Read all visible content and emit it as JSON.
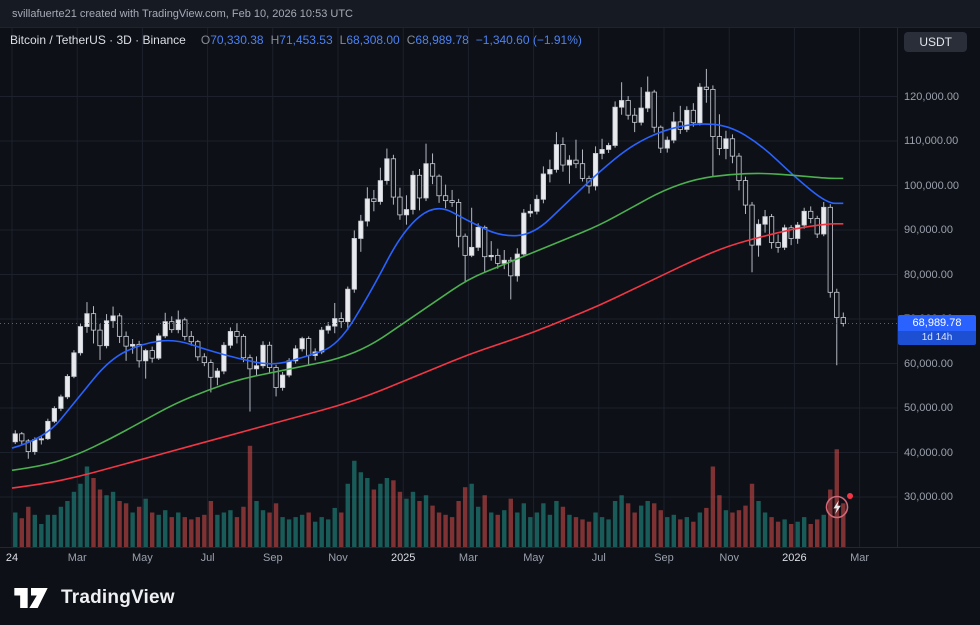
{
  "topbar": {
    "attribution": "svillafuerte21 created with TradingView.com, Feb 10, 2026 10:53 UTC"
  },
  "legend": {
    "symbol": "Bitcoin / TetherUS · 3D · Binance",
    "ohlc": [
      {
        "label": "O",
        "value": "70,330.38"
      },
      {
        "label": "H",
        "value": "71,453.53"
      },
      {
        "label": "L",
        "value": "68,308.00"
      },
      {
        "label": "C",
        "value": "68,989.78"
      }
    ],
    "change": "−1,340.60 (−1.91%)"
  },
  "currency_button": "USDT",
  "price_axis": {
    "labels": [
      {
        "text": "120,000.00",
        "value": 120
      },
      {
        "text": "110,000.00",
        "value": 110
      },
      {
        "text": "100,000.00",
        "value": 100
      },
      {
        "text": "90,000.00",
        "value": 90
      },
      {
        "text": "80,000.00",
        "value": 80
      },
      {
        "text": "70,000.00",
        "value": 70
      },
      {
        "text": "60,000.00",
        "value": 60
      },
      {
        "text": "50,000.00",
        "value": 50
      },
      {
        "text": "40,000.00",
        "value": 40
      },
      {
        "text": "30,000.00",
        "value": 30
      }
    ],
    "last_price": {
      "text": "68,989.78",
      "value": 68.98978,
      "countdown": "1d 14h"
    }
  },
  "time_axis": {
    "labels": [
      {
        "text": "24",
        "m": 0,
        "major": true
      },
      {
        "text": "Mar",
        "m": 2,
        "major": false
      },
      {
        "text": "May",
        "m": 4,
        "major": false
      },
      {
        "text": "Jul",
        "m": 6,
        "major": false
      },
      {
        "text": "Sep",
        "m": 8,
        "major": false
      },
      {
        "text": "Nov",
        "m": 10,
        "major": false
      },
      {
        "text": "2025",
        "m": 12,
        "major": true
      },
      {
        "text": "Mar",
        "m": 14,
        "major": false
      },
      {
        "text": "May",
        "m": 16,
        "major": false
      },
      {
        "text": "Jul",
        "m": 18,
        "major": false
      },
      {
        "text": "Sep",
        "m": 20,
        "major": false
      },
      {
        "text": "Nov",
        "m": 22,
        "major": false
      },
      {
        "text": "2026",
        "m": 24,
        "major": true
      },
      {
        "text": "Mar",
        "m": 26,
        "major": false
      }
    ]
  },
  "footer": {
    "brand": "TradingView"
  },
  "colors": {
    "background": "#0d1016",
    "grid": "#1c212c",
    "axis_border": "#222734",
    "axis_text": "#9aa0ac",
    "accent_blue": "#2962ff",
    "ma_fast": "#2962ff",
    "ma_mid": "#4caf50",
    "ma_slow": "#f23645",
    "candle_up": "#e9eaee",
    "candle_down": "#0d1016",
    "candle_border": "#c9cdd5",
    "candle_wick": "#b4b8c2",
    "vol_up": "#26a69a",
    "vol_down": "#ef5350",
    "badge_bg": "#2962ff",
    "dot_red": "#f23645"
  },
  "chart_data": {
    "type": "bar",
    "subtype": "candlestick-with-volume",
    "title": "Bitcoin / TetherUS",
    "exchange": "Binance",
    "interval": "3D",
    "unit": "USD thousands",
    "x_range": "Jan 2024 – Feb 10 2026",
    "ylim": [
      30,
      120
    ],
    "last_bar": {
      "open": 70330.38,
      "high": 71453.53,
      "low": 68308.0,
      "close": 68989.78,
      "change": -1340.6,
      "change_pct": -1.91
    },
    "candles": [
      [
        42.4,
        45.0,
        41.9,
        44.2,
        30
      ],
      [
        44.2,
        44.6,
        41.6,
        42.6,
        25
      ],
      [
        42.6,
        43.0,
        38.6,
        40.2,
        35
      ],
      [
        40.2,
        43.4,
        39.5,
        42.9,
        28
      ],
      [
        42.9,
        43.6,
        41.8,
        43.1,
        20
      ],
      [
        43.1,
        47.6,
        42.8,
        47.0,
        28
      ],
      [
        47.0,
        50.4,
        46.6,
        49.9,
        28
      ],
      [
        49.9,
        53.0,
        49.3,
        52.5,
        35
      ],
      [
        52.5,
        57.6,
        52.0,
        57.1,
        40
      ],
      [
        57.1,
        63.0,
        56.7,
        62.4,
        48
      ],
      [
        62.4,
        69.0,
        61.8,
        68.3,
        55
      ],
      [
        68.3,
        73.8,
        66.9,
        71.2,
        70
      ],
      [
        71.2,
        72.9,
        64.5,
        67.5,
        60
      ],
      [
        67.5,
        68.9,
        60.8,
        64.0,
        50
      ],
      [
        64.0,
        71.1,
        63.4,
        69.6,
        45
      ],
      [
        69.6,
        72.8,
        68.0,
        70.7,
        48
      ],
      [
        70.7,
        71.3,
        64.6,
        66.1,
        40
      ],
      [
        66.1,
        67.2,
        60.6,
        63.9,
        38
      ],
      [
        63.9,
        65.5,
        62.2,
        64.3,
        30
      ],
      [
        64.3,
        65.1,
        59.1,
        60.6,
        35
      ],
      [
        60.6,
        63.3,
        56.6,
        62.9,
        42
      ],
      [
        62.9,
        63.8,
        60.2,
        61.2,
        30
      ],
      [
        61.2,
        66.8,
        60.8,
        66.2,
        28
      ],
      [
        66.2,
        71.4,
        65.7,
        69.4,
        32
      ],
      [
        69.4,
        70.6,
        66.9,
        67.6,
        26
      ],
      [
        67.6,
        71.9,
        66.8,
        69.8,
        30
      ],
      [
        69.8,
        70.3,
        65.2,
        66.1,
        26
      ],
      [
        66.1,
        67.3,
        64.0,
        64.9,
        24
      ],
      [
        64.9,
        65.3,
        60.6,
        61.5,
        26
      ],
      [
        61.5,
        62.3,
        59.4,
        60.2,
        28
      ],
      [
        60.2,
        60.9,
        53.5,
        56.9,
        40
      ],
      [
        56.9,
        59.0,
        55.1,
        58.3,
        28
      ],
      [
        58.3,
        64.8,
        57.6,
        64.1,
        30
      ],
      [
        64.1,
        68.1,
        63.4,
        67.2,
        32
      ],
      [
        67.2,
        69.1,
        64.5,
        66.1,
        26
      ],
      [
        66.1,
        66.6,
        60.3,
        61.3,
        35
      ],
      [
        61.3,
        62.0,
        49.2,
        58.8,
        88
      ],
      [
        58.8,
        61.6,
        57.2,
        59.5,
        40
      ],
      [
        59.5,
        65.0,
        58.9,
        64.1,
        32
      ],
      [
        64.1,
        64.9,
        57.9,
        59.1,
        30
      ],
      [
        59.1,
        59.7,
        52.6,
        54.6,
        38
      ],
      [
        54.6,
        58.1,
        53.9,
        57.4,
        26
      ],
      [
        57.4,
        61.2,
        56.9,
        60.6,
        24
      ],
      [
        60.6,
        64.1,
        60.0,
        63.3,
        26
      ],
      [
        63.3,
        66.0,
        62.7,
        65.6,
        28
      ],
      [
        65.6,
        66.1,
        59.8,
        61.8,
        30
      ],
      [
        61.8,
        63.4,
        60.7,
        62.6,
        22
      ],
      [
        62.6,
        68.2,
        62.1,
        67.5,
        26
      ],
      [
        67.5,
        69.3,
        66.7,
        68.4,
        24
      ],
      [
        68.4,
        73.6,
        66.8,
        70.1,
        34
      ],
      [
        70.1,
        71.5,
        68.0,
        69.4,
        30
      ],
      [
        69.4,
        77.3,
        67.5,
        76.7,
        55
      ],
      [
        76.7,
        89.9,
        75.9,
        88.1,
        75
      ],
      [
        88.1,
        93.4,
        85.1,
        92.0,
        65
      ],
      [
        92.0,
        99.6,
        90.8,
        97.0,
        60
      ],
      [
        97.0,
        99.0,
        94.2,
        96.4,
        50
      ],
      [
        96.4,
        104.0,
        95.7,
        101.1,
        55
      ],
      [
        101.1,
        108.3,
        100.2,
        106.0,
        60
      ],
      [
        106.0,
        106.9,
        95.7,
        97.4,
        58
      ],
      [
        97.4,
        99.5,
        92.3,
        93.4,
        48
      ],
      [
        93.4,
        97.8,
        91.2,
        94.6,
        42
      ],
      [
        94.6,
        103.3,
        93.5,
        102.3,
        48
      ],
      [
        102.3,
        103.7,
        94.4,
        97.2,
        40
      ],
      [
        97.2,
        109.4,
        96.5,
        104.9,
        45
      ],
      [
        104.9,
        107.2,
        100.3,
        102.1,
        36
      ],
      [
        102.1,
        102.5,
        96.1,
        97.7,
        30
      ],
      [
        97.7,
        100.2,
        94.9,
        96.6,
        28
      ],
      [
        96.6,
        99.0,
        95.2,
        96.2,
        26
      ],
      [
        96.2,
        97.0,
        86.1,
        88.6,
        40
      ],
      [
        88.6,
        89.2,
        78.2,
        84.3,
        52
      ],
      [
        84.3,
        95.0,
        83.9,
        86.1,
        55
      ],
      [
        86.1,
        91.5,
        85.3,
        90.6,
        35
      ],
      [
        90.6,
        91.0,
        80.6,
        84.0,
        45
      ],
      [
        84.0,
        87.5,
        83.1,
        84.3,
        30
      ],
      [
        84.3,
        85.8,
        81.3,
        82.5,
        28
      ],
      [
        82.5,
        85.5,
        81.2,
        83.2,
        32
      ],
      [
        83.2,
        83.9,
        74.4,
        79.7,
        42
      ],
      [
        79.7,
        85.9,
        78.4,
        84.6,
        30
      ],
      [
        84.6,
        94.7,
        83.9,
        93.8,
        38
      ],
      [
        93.8,
        95.8,
        92.9,
        94.2,
        26
      ],
      [
        94.2,
        97.9,
        93.5,
        96.9,
        30
      ],
      [
        96.9,
        104.3,
        96.0,
        102.6,
        38
      ],
      [
        102.6,
        105.8,
        100.7,
        103.6,
        28
      ],
      [
        103.6,
        112.0,
        102.9,
        109.2,
        40
      ],
      [
        109.2,
        110.8,
        103.1,
        104.6,
        35
      ],
      [
        104.6,
        106.8,
        100.4,
        105.7,
        28
      ],
      [
        105.7,
        110.3,
        103.9,
        104.9,
        26
      ],
      [
        104.9,
        108.1,
        100.9,
        101.6,
        24
      ],
      [
        101.6,
        102.2,
        98.2,
        99.9,
        22
      ],
      [
        99.9,
        108.8,
        98.9,
        107.2,
        30
      ],
      [
        107.2,
        110.5,
        105.9,
        108.1,
        26
      ],
      [
        108.1,
        109.6,
        107.3,
        109.0,
        24
      ],
      [
        109.0,
        118.9,
        108.5,
        117.6,
        40
      ],
      [
        117.6,
        123.2,
        115.9,
        119.1,
        45
      ],
      [
        119.1,
        120.1,
        114.8,
        115.8,
        38
      ],
      [
        115.8,
        117.4,
        112.0,
        114.2,
        30
      ],
      [
        114.2,
        122.1,
        113.5,
        117.4,
        36
      ],
      [
        117.4,
        124.5,
        116.5,
        121.0,
        40
      ],
      [
        121.0,
        121.5,
        111.9,
        113.1,
        38
      ],
      [
        113.1,
        113.5,
        107.3,
        108.4,
        32
      ],
      [
        108.4,
        111.0,
        107.4,
        110.2,
        26
      ],
      [
        110.2,
        116.5,
        109.5,
        114.3,
        28
      ],
      [
        114.3,
        117.9,
        111.6,
        112.6,
        24
      ],
      [
        112.6,
        117.8,
        112.0,
        116.9,
        26
      ],
      [
        116.9,
        118.5,
        113.2,
        114.1,
        22
      ],
      [
        114.1,
        123.0,
        113.5,
        122.1,
        30
      ],
      [
        122.1,
        126.2,
        118.6,
        121.6,
        34
      ],
      [
        121.6,
        122.5,
        102.1,
        111.0,
        70
      ],
      [
        111.0,
        116.0,
        106.8,
        108.3,
        45
      ],
      [
        108.3,
        112.3,
        105.9,
        110.5,
        32
      ],
      [
        110.5,
        111.5,
        105.0,
        106.6,
        30
      ],
      [
        106.6,
        107.3,
        98.9,
        101.1,
        32
      ],
      [
        101.1,
        102.0,
        93.6,
        95.6,
        36
      ],
      [
        95.6,
        96.3,
        80.5,
        86.6,
        55
      ],
      [
        86.6,
        92.4,
        84.0,
        91.3,
        40
      ],
      [
        91.3,
        94.5,
        89.4,
        93.0,
        30
      ],
      [
        93.0,
        93.6,
        85.8,
        87.2,
        26
      ],
      [
        87.2,
        89.0,
        84.9,
        86.1,
        22
      ],
      [
        86.1,
        91.2,
        85.5,
        90.5,
        24
      ],
      [
        90.5,
        91.1,
        86.6,
        88.1,
        20
      ],
      [
        88.1,
        91.8,
        86.9,
        91.1,
        22
      ],
      [
        91.1,
        95.0,
        90.3,
        94.2,
        26
      ],
      [
        94.2,
        95.3,
        91.5,
        92.6,
        20
      ],
      [
        92.6,
        93.2,
        88.2,
        89.1,
        24
      ],
      [
        89.1,
        96.3,
        88.6,
        95.1,
        28
      ],
      [
        95.1,
        95.8,
        74.8,
        76.0,
        50
      ],
      [
        76.0,
        76.8,
        59.6,
        70.33,
        85
      ],
      [
        70.33,
        71.453,
        68.308,
        68.99,
        38
      ]
    ],
    "moving_averages": [
      {
        "name": "ma-fast",
        "color": "#2962ff",
        "monthly_values": [
          41,
          43,
          52,
          61,
          64.5,
          65.5,
          63,
          61,
          59.5,
          61.5,
          64,
          76,
          90,
          96,
          92,
          88.5,
          89,
          96,
          103,
          109,
          112.5,
          114,
          113.5,
          109,
          102,
          96
        ]
      },
      {
        "name": "ma-mid",
        "color": "#4caf50",
        "monthly_values": [
          36,
          37,
          39.5,
          43,
          47,
          51,
          54,
          56.5,
          58,
          59.5,
          61,
          64,
          69,
          74,
          79,
          82,
          85,
          88,
          91,
          95,
          99,
          101.5,
          102.5,
          102.8,
          102.3,
          101.6
        ]
      },
      {
        "name": "ma-slow",
        "color": "#f23645",
        "monthly_values": [
          32,
          33,
          34.5,
          36.5,
          38.5,
          40.5,
          42.5,
          44.5,
          46.5,
          48.5,
          50.5,
          53,
          56,
          59,
          62,
          64.5,
          67,
          70,
          73,
          76.5,
          80,
          83.5,
          86.5,
          88.5,
          90.3,
          91.4
        ]
      }
    ]
  }
}
